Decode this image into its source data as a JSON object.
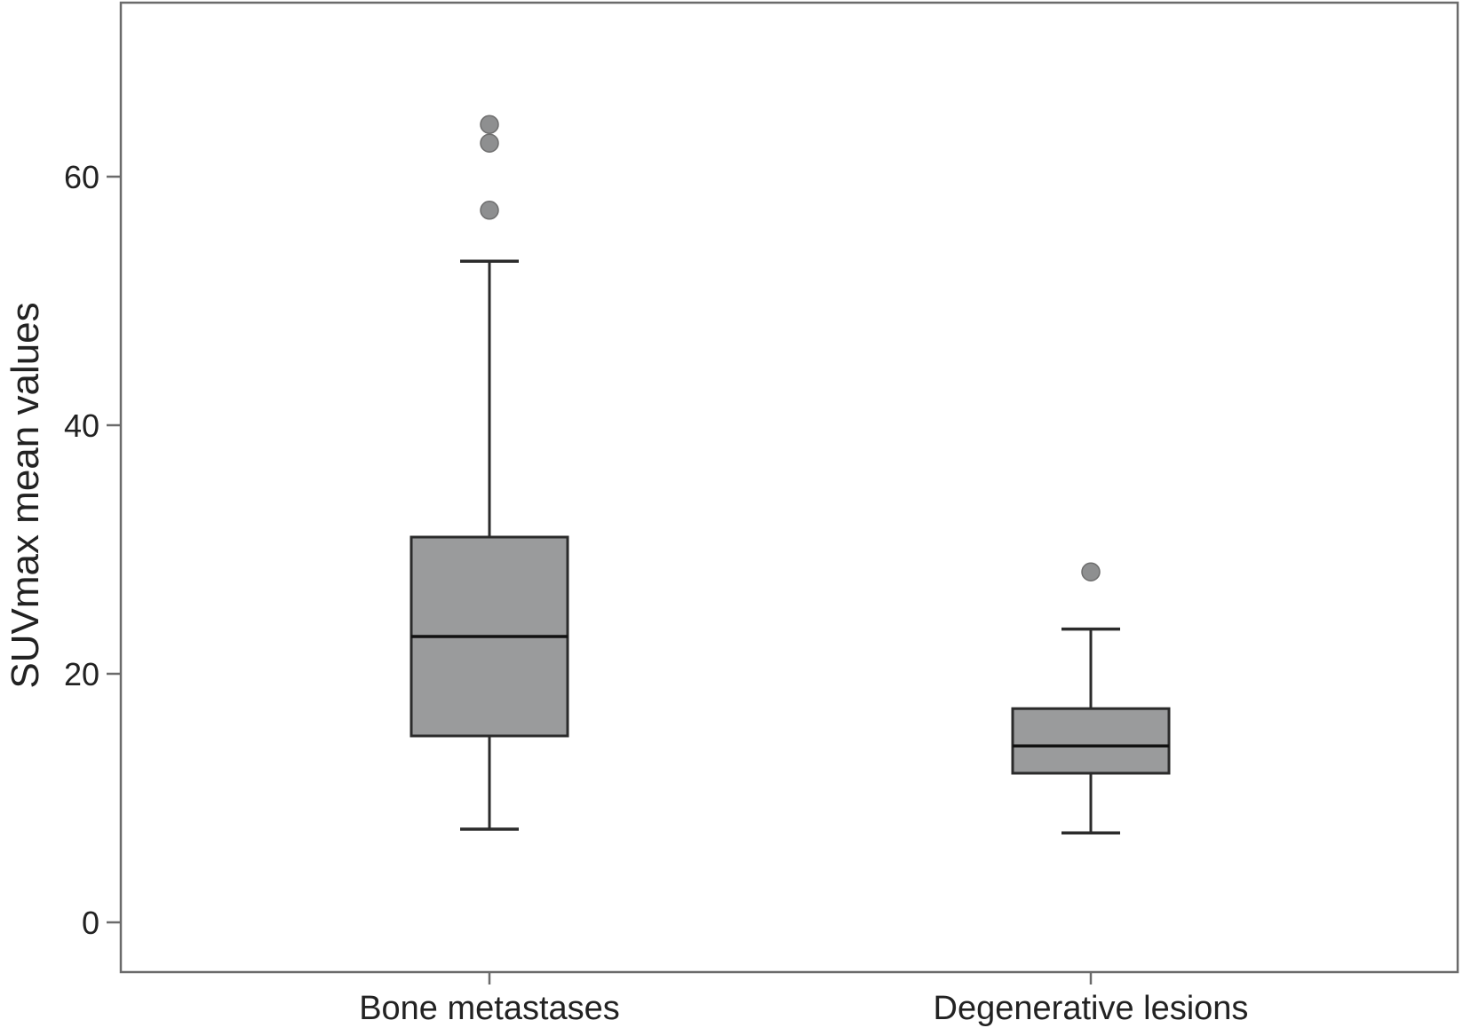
{
  "chart_data": {
    "type": "boxplot",
    "title": "",
    "xlabel": "",
    "ylabel": "SUVmax mean values",
    "ylim": [
      -4,
      73
    ],
    "yticks": [
      0,
      20,
      40,
      60
    ],
    "ytick_labels": [
      "0",
      "20",
      "40",
      "60"
    ],
    "grid": false,
    "legend": "none",
    "categories": [
      "Bone metastases",
      "Degenerative lesions"
    ],
    "series": [
      {
        "category": "Bone metastases",
        "whisker_low": 7.5,
        "q1": 15,
        "median": 23,
        "q3": 31,
        "whisker_high": 53.2,
        "outliers": [
          57.3,
          62.7,
          64.2
        ]
      },
      {
        "category": "Degenerative lesions",
        "whisker_low": 7.2,
        "q1": 12,
        "median": 14.2,
        "q3": 17.2,
        "whisker_high": 23.6,
        "outliers": [
          28.2
        ]
      }
    ],
    "colors": {
      "box_fill": "#9a9b9c",
      "line": "#2b2b2b",
      "outlier_fill": "#8e8f90",
      "axis": "#6b6b6b"
    }
  }
}
